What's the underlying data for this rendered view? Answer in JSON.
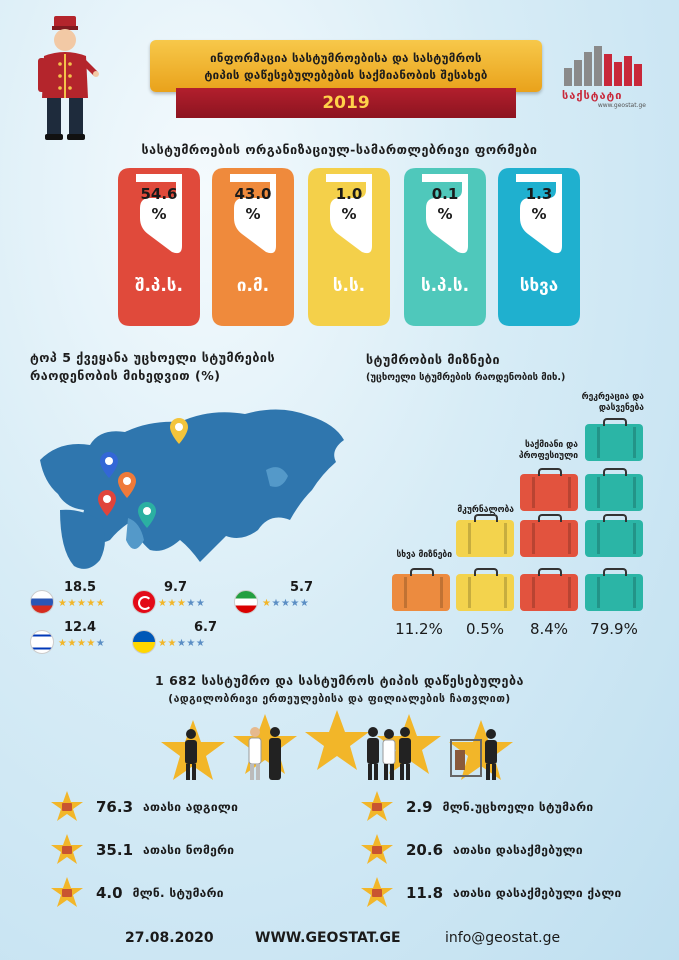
{
  "header": {
    "title_line1": "ინფორმაცია სასტუმროებისა და სასტუმროს",
    "title_line2": "ტიპის დაწესებულებების საქმიანობის შესახებ",
    "year": "2019",
    "logo_text": "საქსტატი",
    "logo_url": "www.geostat.ge"
  },
  "org_forms": {
    "title": "სასტუმროების ორგანიზაციულ-სამართლებრივი ფორმები",
    "items": [
      {
        "pct": "54.6",
        "unit": "%",
        "label": "შ.პ.ს.",
        "color": "#e04a3b"
      },
      {
        "pct": "43.0",
        "unit": "%",
        "label": "ი.მ.",
        "color": "#ef8a3c"
      },
      {
        "pct": "1.0",
        "unit": "%",
        "label": "ს.ს.",
        "color": "#f4d04a"
      },
      {
        "pct": "0.1",
        "unit": "%",
        "label": "ს.პ.ს.",
        "color": "#4fc8bb"
      },
      {
        "pct": "1.3",
        "unit": "%",
        "label": "სხვა",
        "color": "#1fb0cf"
      }
    ]
  },
  "top5": {
    "title_line1": "ტოპ 5 ქვეყანა უცხოელი სტუმრების",
    "title_line2": "რაოდენობის მიხედვით (%)",
    "countries": [
      {
        "value": "18.5",
        "filled": 5
      },
      {
        "value": "9.7",
        "filled": 3
      },
      {
        "value": "5.7",
        "filled": 1
      },
      {
        "value": "12.4",
        "filled": 4
      },
      {
        "value": "6.7",
        "filled": 2
      }
    ]
  },
  "purposes": {
    "title": "სტუმრობის მიზნები",
    "subtitle": "(უცხოელი სტუმრების რაოდენობის მიხ.)",
    "labels": {
      "leisure": "რეკრეაცია და",
      "leisure2": "დასვენება",
      "business": "საქმიანი და",
      "business2": "პროფესიული",
      "health": "მკურნალობა",
      "other": "სხვა მიზნები"
    },
    "percents": [
      "11.2%",
      "0.5%",
      "8.4%",
      "79.9%"
    ]
  },
  "establishments": {
    "title_line1": "1 682 სასტუმრო და სასტუმროს ტიპის დაწესებულება",
    "title_line2": "(ადგილობრივი ერთეულებისა და ფილიალების ჩათვლით)"
  },
  "stats": [
    {
      "value": "76.3",
      "label": "ათასი ადგილი",
      "icon": "bed-icon"
    },
    {
      "value": "2.9",
      "label": "მლნ.უცხოელი სტუმარი",
      "icon": "luggage-icon"
    },
    {
      "value": "35.1",
      "label": "ათასი ნომერი",
      "icon": "door-icon"
    },
    {
      "value": "20.6",
      "label": "ათასი დასაქმებული",
      "icon": "worker-icon"
    },
    {
      "value": "4.0",
      "label": "მლნ. სტუმარი",
      "icon": "suitcase-icon"
    },
    {
      "value": "11.8",
      "label": "ათასი დასაქმებული ქალი",
      "icon": "woman-icon"
    }
  ],
  "footer": {
    "date": "27.08.2020",
    "website": "WWW.GEOSTAT.GE",
    "email": "info@geostat.ge"
  }
}
